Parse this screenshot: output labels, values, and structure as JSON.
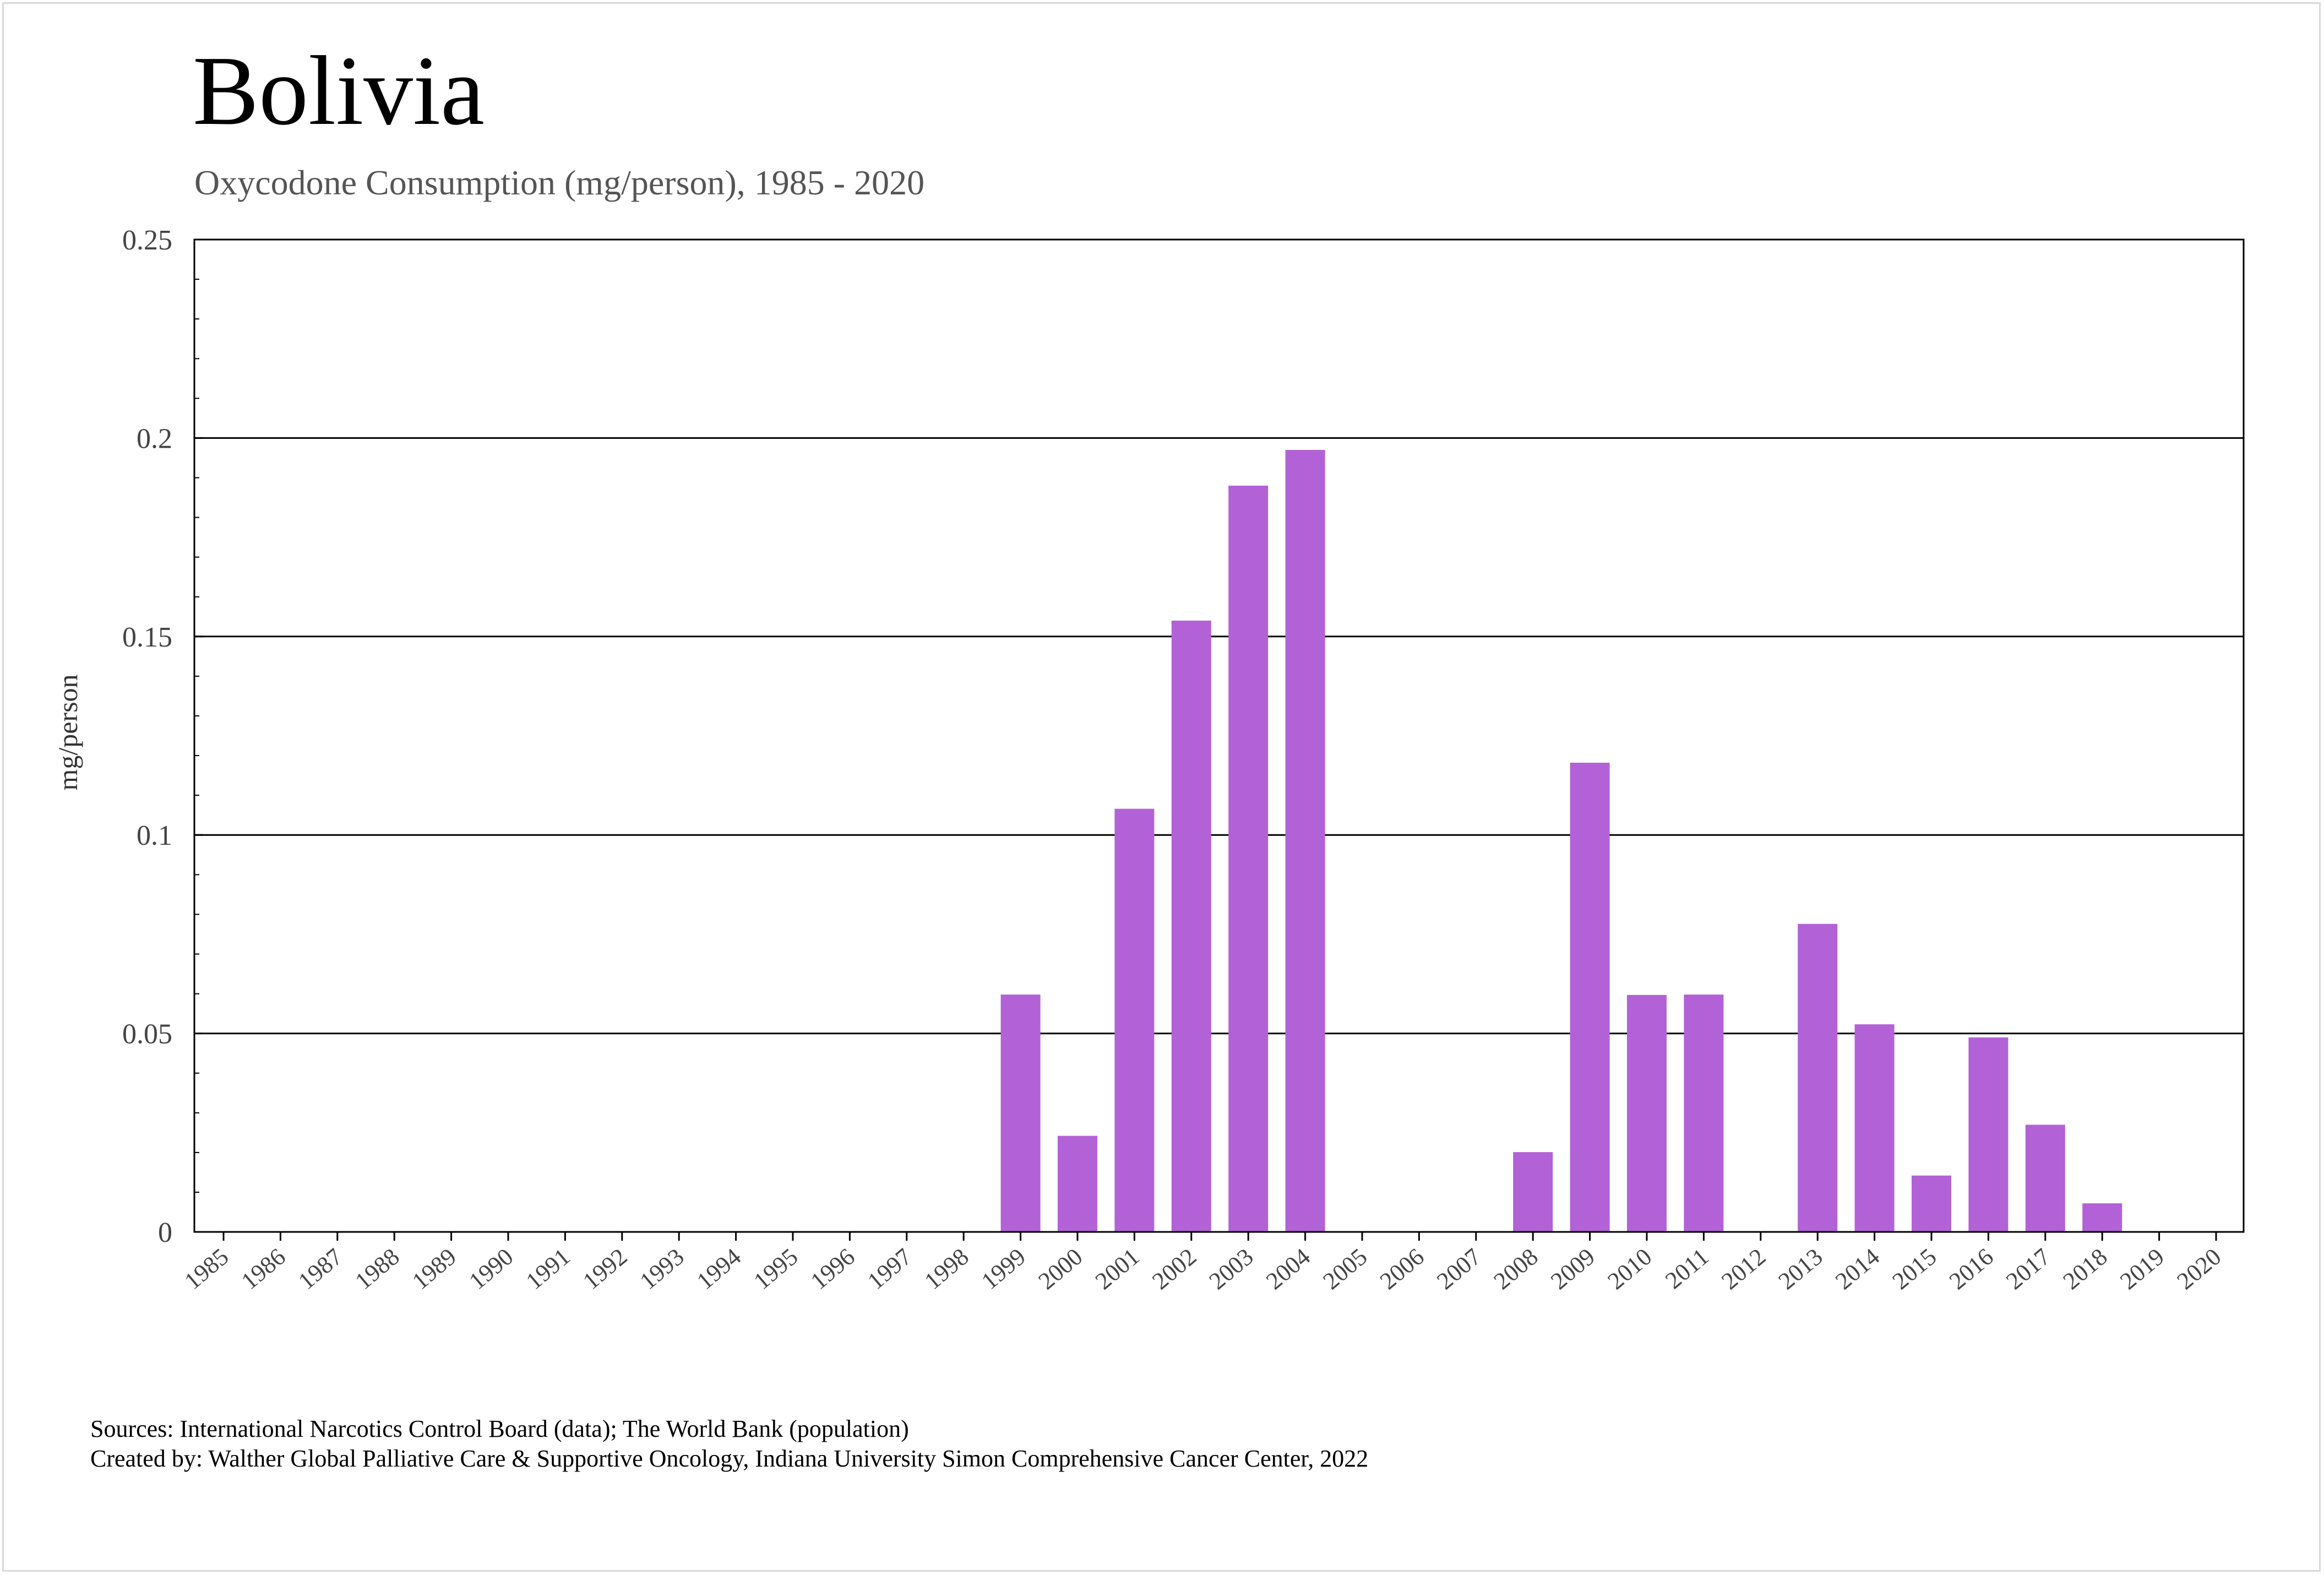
{
  "chart_data": {
    "type": "bar",
    "title": "Bolivia",
    "subtitle": "Oxycodone Consumption (mg/person), 1985 - 2020",
    "xlabel": "",
    "ylabel": "mg/person",
    "ylim": [
      0,
      0.25
    ],
    "yticks": [
      "0",
      "0.05",
      "0.1",
      "0.15",
      "0.2",
      "0.25"
    ],
    "ytick_values": [
      0,
      0.05,
      0.1,
      0.15,
      0.2,
      0.25
    ],
    "grid": true,
    "bar_color": "#b262d6",
    "categories": [
      "1985",
      "1986",
      "1987",
      "1988",
      "1989",
      "1990",
      "1991",
      "1992",
      "1993",
      "1994",
      "1995",
      "1996",
      "1997",
      "1998",
      "1999",
      "2000",
      "2001",
      "2002",
      "2003",
      "2004",
      "2005",
      "2006",
      "2007",
      "2008",
      "2009",
      "2010",
      "2011",
      "2012",
      "2013",
      "2014",
      "2015",
      "2016",
      "2017",
      "2018",
      "2019",
      "2020"
    ],
    "values": [
      0,
      0,
      0,
      0,
      0,
      0,
      0,
      0,
      0,
      0,
      0,
      0,
      0,
      0,
      0.0598,
      0.0242,
      0.1066,
      0.154,
      0.188,
      0.197,
      0,
      0,
      0,
      0.0201,
      0.1182,
      0.0597,
      0.0598,
      0,
      0.0776,
      0.0523,
      0.0142,
      0.049,
      0.027,
      0.0072,
      0,
      0
    ]
  },
  "footer": {
    "sources": "Sources: International Narcotics Control Board (data); The World Bank (population)",
    "created_by": "Created by: Walther Global Palliative Care & Supportive Oncology, Indiana University Simon Comprehensive Cancer Center, 2022"
  }
}
